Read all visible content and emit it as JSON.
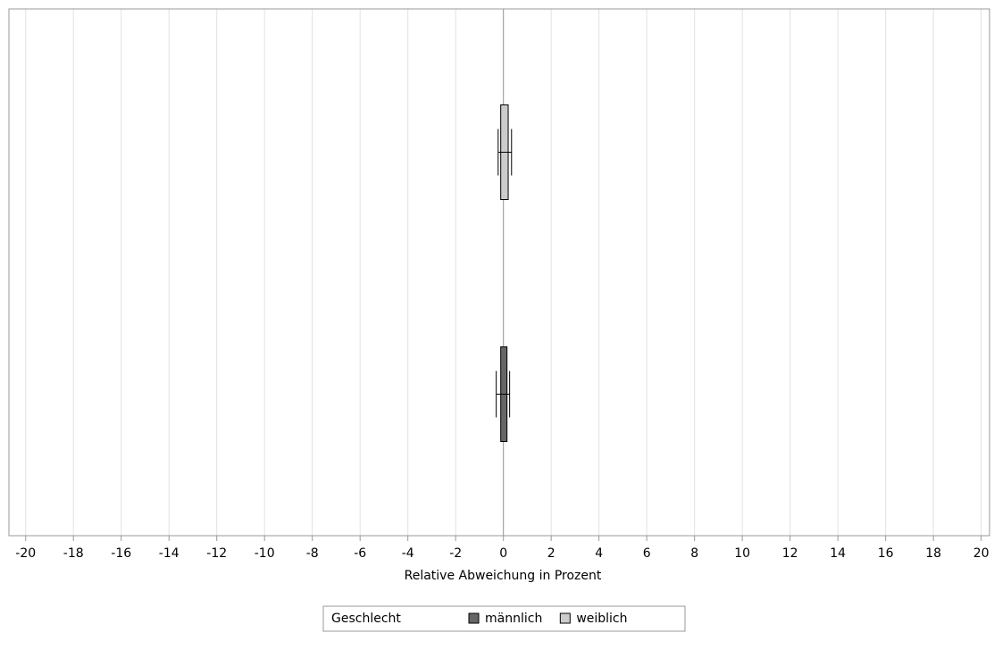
{
  "chart_data": {
    "type": "hbar_error",
    "x_label": "Relative Abweichung in Prozent",
    "legend_title": "Geschlecht",
    "categories": [
      null,
      null
    ],
    "series": [
      {
        "name": "männlich",
        "color": "#666666",
        "values": [
          null,
          0.15
        ],
        "error_low": [
          null,
          -0.3
        ],
        "error_high": [
          null,
          0.26
        ]
      },
      {
        "name": "weiblich",
        "color": "#cccccc",
        "values": [
          0.2,
          null
        ],
        "error_low": [
          -0.22,
          null
        ],
        "error_high": [
          0.34,
          null
        ]
      }
    ],
    "xlim": [
      -20.7,
      20.35
    ],
    "xticks": [
      -20,
      -18,
      -16,
      -14,
      -12,
      -10,
      -8,
      -6,
      -4,
      -2,
      0,
      2,
      4,
      6,
      8,
      10,
      12,
      14,
      16,
      18,
      20
    ],
    "grid": true
  }
}
